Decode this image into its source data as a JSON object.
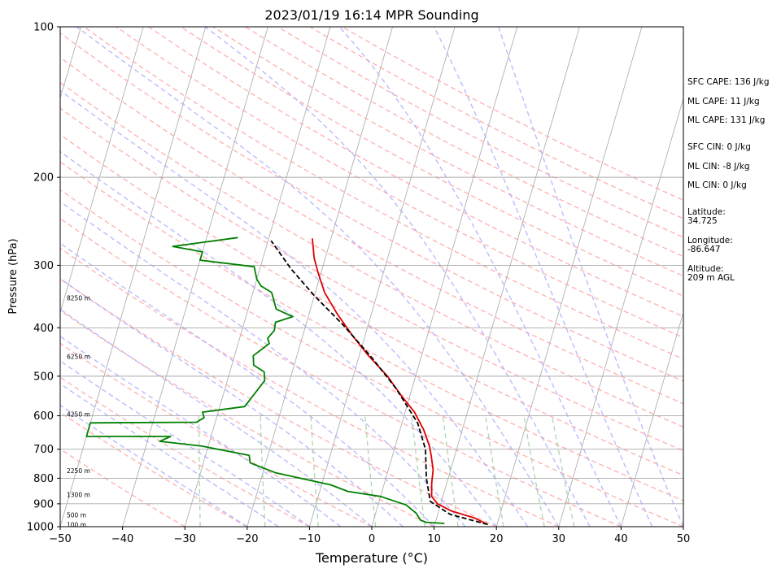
{
  "chart_data": {
    "type": "line",
    "title": "2023/01/19 16:14 MPR Sounding",
    "xlabel": "Temperature (°C)",
    "ylabel": "Pressure (hPa)",
    "xlim": [
      -50,
      50
    ],
    "ylim": [
      1000,
      100
    ],
    "y_scale": "log",
    "grid": true,
    "x_ticks": [
      "−50",
      "−40",
      "−30",
      "−20",
      "−10",
      "0",
      "10",
      "20",
      "30",
      "40",
      "50"
    ],
    "x_tick_values": [
      -50,
      -40,
      -30,
      -20,
      -10,
      0,
      10,
      20,
      30,
      40,
      50
    ],
    "y_ticks": [
      "100",
      "200",
      "300",
      "400",
      "500",
      "600",
      "700",
      "800",
      "900",
      "1000"
    ],
    "y_tick_values": [
      100,
      200,
      300,
      400,
      500,
      600,
      700,
      800,
      900,
      1000
    ],
    "series": [
      {
        "role": "temperature",
        "color": "#e00000",
        "points": [
          [
            18.5,
            990
          ],
          [
            16,
            960
          ],
          [
            12,
            930
          ],
          [
            9.5,
            900
          ],
          [
            8.2,
            870
          ],
          [
            7.6,
            820
          ],
          [
            7.2,
            770
          ],
          [
            6.2,
            720
          ],
          [
            5.5,
            690
          ],
          [
            3.8,
            640
          ],
          [
            1.5,
            590
          ],
          [
            -1.5,
            545
          ],
          [
            -4.5,
            500
          ],
          [
            -8.5,
            455
          ],
          [
            -12,
            415
          ],
          [
            -15.5,
            375
          ],
          [
            -18.5,
            340
          ],
          [
            -20.5,
            310
          ],
          [
            -21.8,
            290
          ],
          [
            -22.5,
            275
          ],
          [
            -23,
            265
          ]
        ]
      },
      {
        "role": "dewpoint",
        "color": "#008000",
        "points": [
          [
            11.5,
            985
          ],
          [
            8.5,
            980
          ],
          [
            7.5,
            970
          ],
          [
            6.5,
            940
          ],
          [
            4.5,
            905
          ],
          [
            0,
            870
          ],
          [
            -5.5,
            850
          ],
          [
            -8.5,
            825
          ],
          [
            -18,
            780
          ],
          [
            -22.5,
            745
          ],
          [
            -23,
            720
          ],
          [
            -31,
            690
          ],
          [
            -38,
            675
          ],
          [
            -36.5,
            660
          ],
          [
            -50,
            660
          ],
          [
            -50,
            620
          ],
          [
            -33,
            618
          ],
          [
            -32,
            605
          ],
          [
            -32.5,
            590
          ],
          [
            -26,
            575
          ],
          [
            -24,
            510
          ],
          [
            -24.5,
            490
          ],
          [
            -26.5,
            475
          ],
          [
            -27,
            455
          ],
          [
            -25,
            430
          ],
          [
            -25.5,
            420
          ],
          [
            -24.8,
            405
          ],
          [
            -25,
            390
          ],
          [
            -22.5,
            380
          ],
          [
            -25.5,
            367
          ],
          [
            -27,
            340
          ],
          [
            -29,
            330
          ],
          [
            -30,
            320
          ],
          [
            -31,
            302
          ],
          [
            -40,
            293
          ],
          [
            -40,
            282
          ],
          [
            -45,
            275
          ],
          [
            -35,
            264
          ]
        ]
      },
      {
        "role": "parcel",
        "color": "#000000",
        "style": "dashed",
        "points": [
          [
            18.5,
            990
          ],
          [
            12,
            945
          ],
          [
            8.2,
            890
          ],
          [
            6.5,
            800
          ],
          [
            5,
            700
          ],
          [
            2.5,
            620
          ],
          [
            -2.5,
            530
          ],
          [
            -7.8,
            460
          ],
          [
            -14,
            395
          ],
          [
            -20,
            345
          ],
          [
            -25,
            305
          ],
          [
            -29.5,
            268
          ]
        ]
      }
    ],
    "height_labels": [
      {
        "text": "8250 m",
        "pressure": 350
      },
      {
        "text": "6250 m",
        "pressure": 458
      },
      {
        "text": "4250 m",
        "pressure": 598
      },
      {
        "text": "2250 m",
        "pressure": 775
      },
      {
        "text": "1300 m",
        "pressure": 865
      },
      {
        "text": "500 m",
        "pressure": 950
      },
      {
        "text": "100 m",
        "pressure": 995
      }
    ],
    "reference_lines": {
      "isotherm_color": "#b0b0b0",
      "dry_adiabat_color": "#ff9999",
      "moist_adiabat_color": "#aaaaff",
      "mixing_ratio_color": "#99cc99"
    }
  },
  "side_panel": [
    {
      "key": "sfc_cape",
      "text": "SFC CAPE: 136 J/kg"
    },
    {
      "key": "ml_cape_1",
      "text": "ML CAPE: 11 J/kg"
    },
    {
      "key": "ml_cape_2",
      "text": "ML CAPE: 131 J/kg"
    },
    {
      "key": "sfc_cin",
      "text": "SFC CIN: 0 J/kg"
    },
    {
      "key": "ml_cin_1",
      "text": "ML CIN: -8 J/kg"
    },
    {
      "key": "ml_cin_2",
      "text": "ML CIN: 0 J/kg"
    },
    {
      "key": "latitude",
      "text": "Latitude:\n34.725"
    },
    {
      "key": "longitude",
      "text": "Longitude:\n-86.647"
    },
    {
      "key": "altitude",
      "text": "Altitude:\n209 m AGL"
    }
  ]
}
